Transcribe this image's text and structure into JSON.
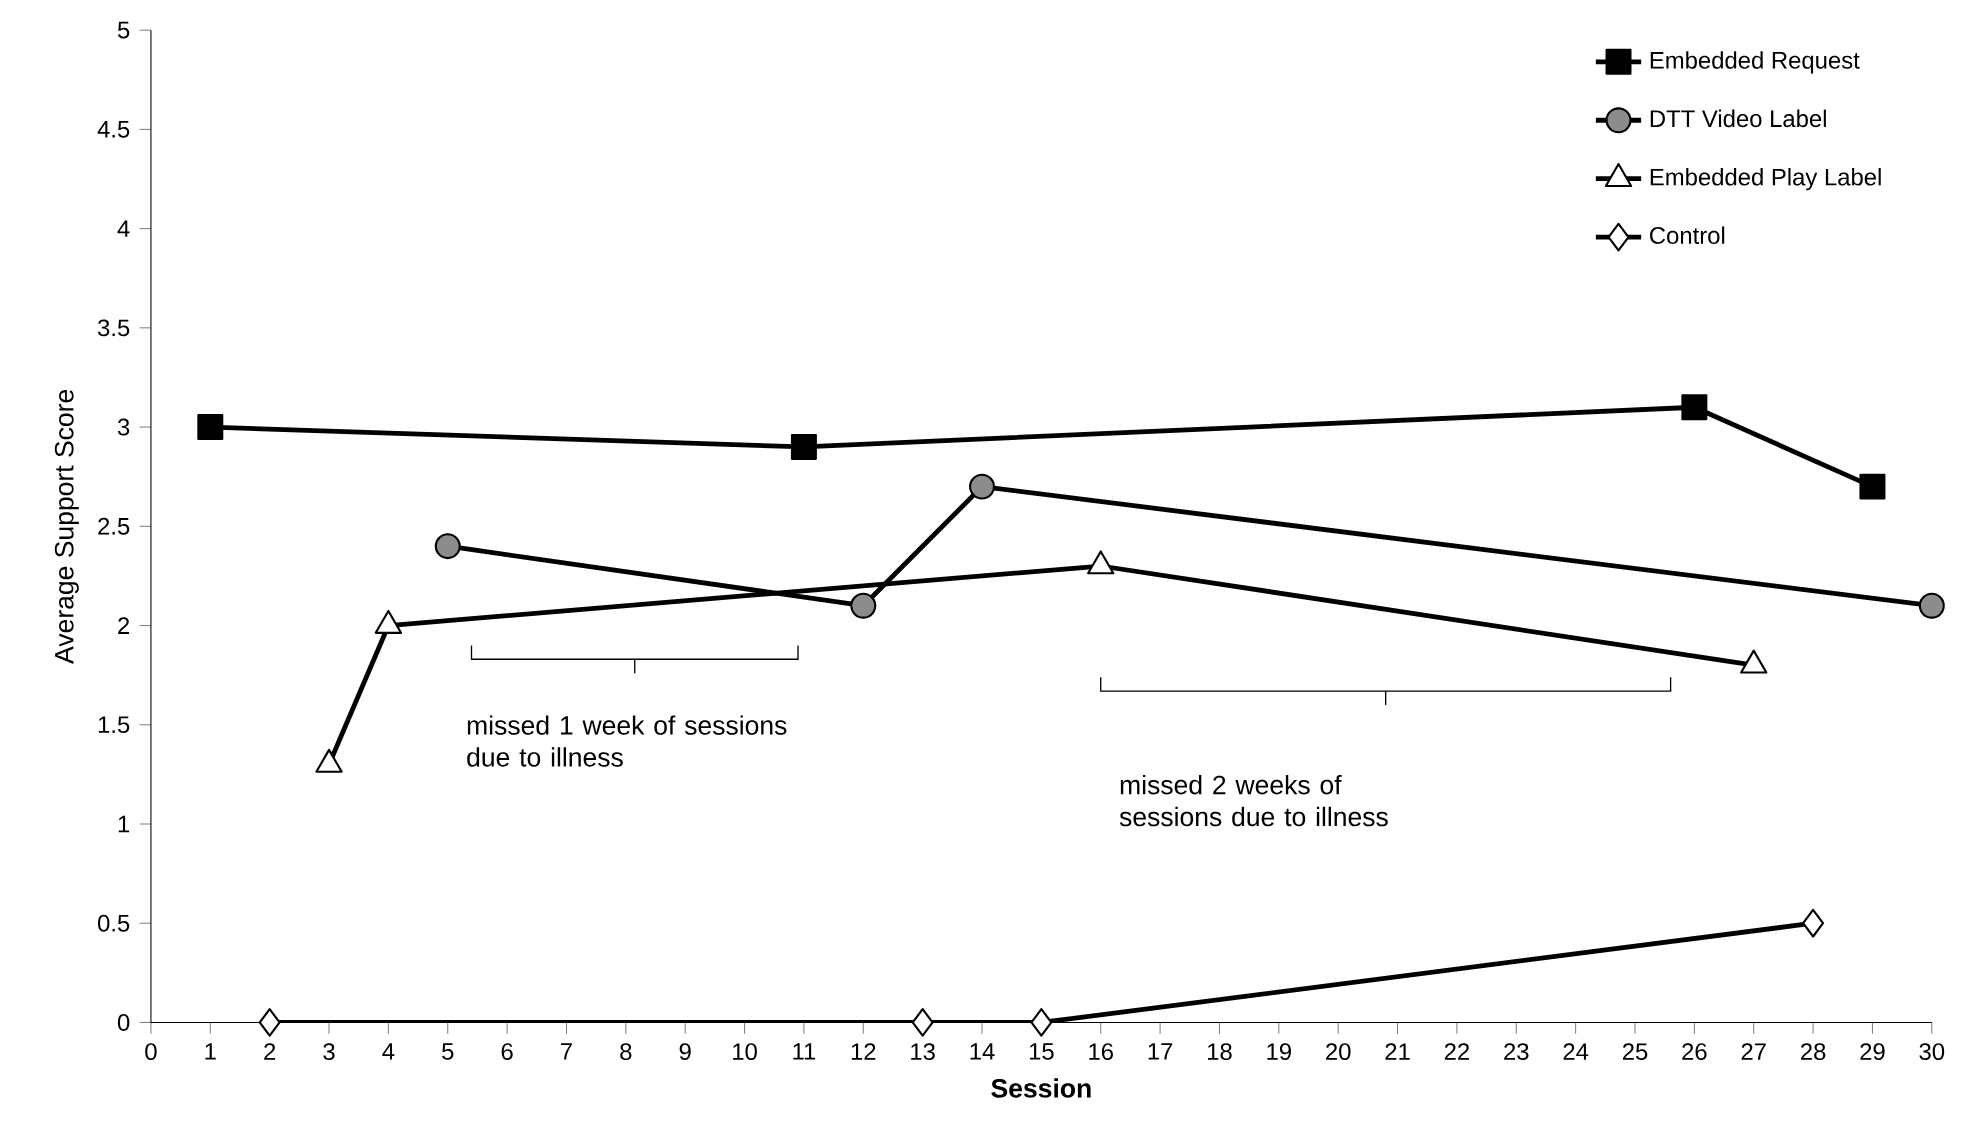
{
  "chart_data": {
    "type": "line",
    "xlabel": "Session",
    "ylabel": "Average  Support  Score",
    "xlim": [
      0,
      30
    ],
    "xticks": [
      0,
      1,
      2,
      3,
      4,
      5,
      6,
      7,
      8,
      9,
      10,
      11,
      12,
      13,
      14,
      15,
      16,
      17,
      18,
      19,
      20,
      21,
      22,
      23,
      24,
      25,
      26,
      27,
      28,
      29,
      30
    ],
    "ylim": [
      0,
      5
    ],
    "yticks": [
      0,
      0.5,
      1,
      1.5,
      2,
      2.5,
      3,
      3.5,
      4,
      4.5,
      5
    ],
    "grid": false,
    "legend": "top right",
    "line_style": "solid",
    "series": [
      {
        "name": "Embedded Request",
        "color": "#000000",
        "marker": "square",
        "x": [
          1,
          11,
          26,
          29
        ],
        "values": [
          3.0,
          2.9,
          3.1,
          2.7
        ]
      },
      {
        "name": "DTT Video Label",
        "color": "#000000",
        "marker": "circle",
        "x": [
          5,
          12,
          14,
          30
        ],
        "values": [
          2.4,
          2.1,
          2.7,
          2.1
        ]
      },
      {
        "name": "Embedded Play Label",
        "color": "#000000",
        "marker": "triangle",
        "x": [
          3,
          4,
          16,
          27
        ],
        "values": [
          1.3,
          2.0,
          2.3,
          1.8
        ]
      },
      {
        "name": "Control",
        "color": "#000000",
        "marker": "diamond",
        "x": [
          2,
          13,
          15,
          28
        ],
        "values": [
          0,
          0,
          0,
          0.5
        ]
      }
    ],
    "annotations": [
      "missed 1 week of sessions due to illness",
      "missed 2 weeks of sessions due to illness"
    ]
  }
}
